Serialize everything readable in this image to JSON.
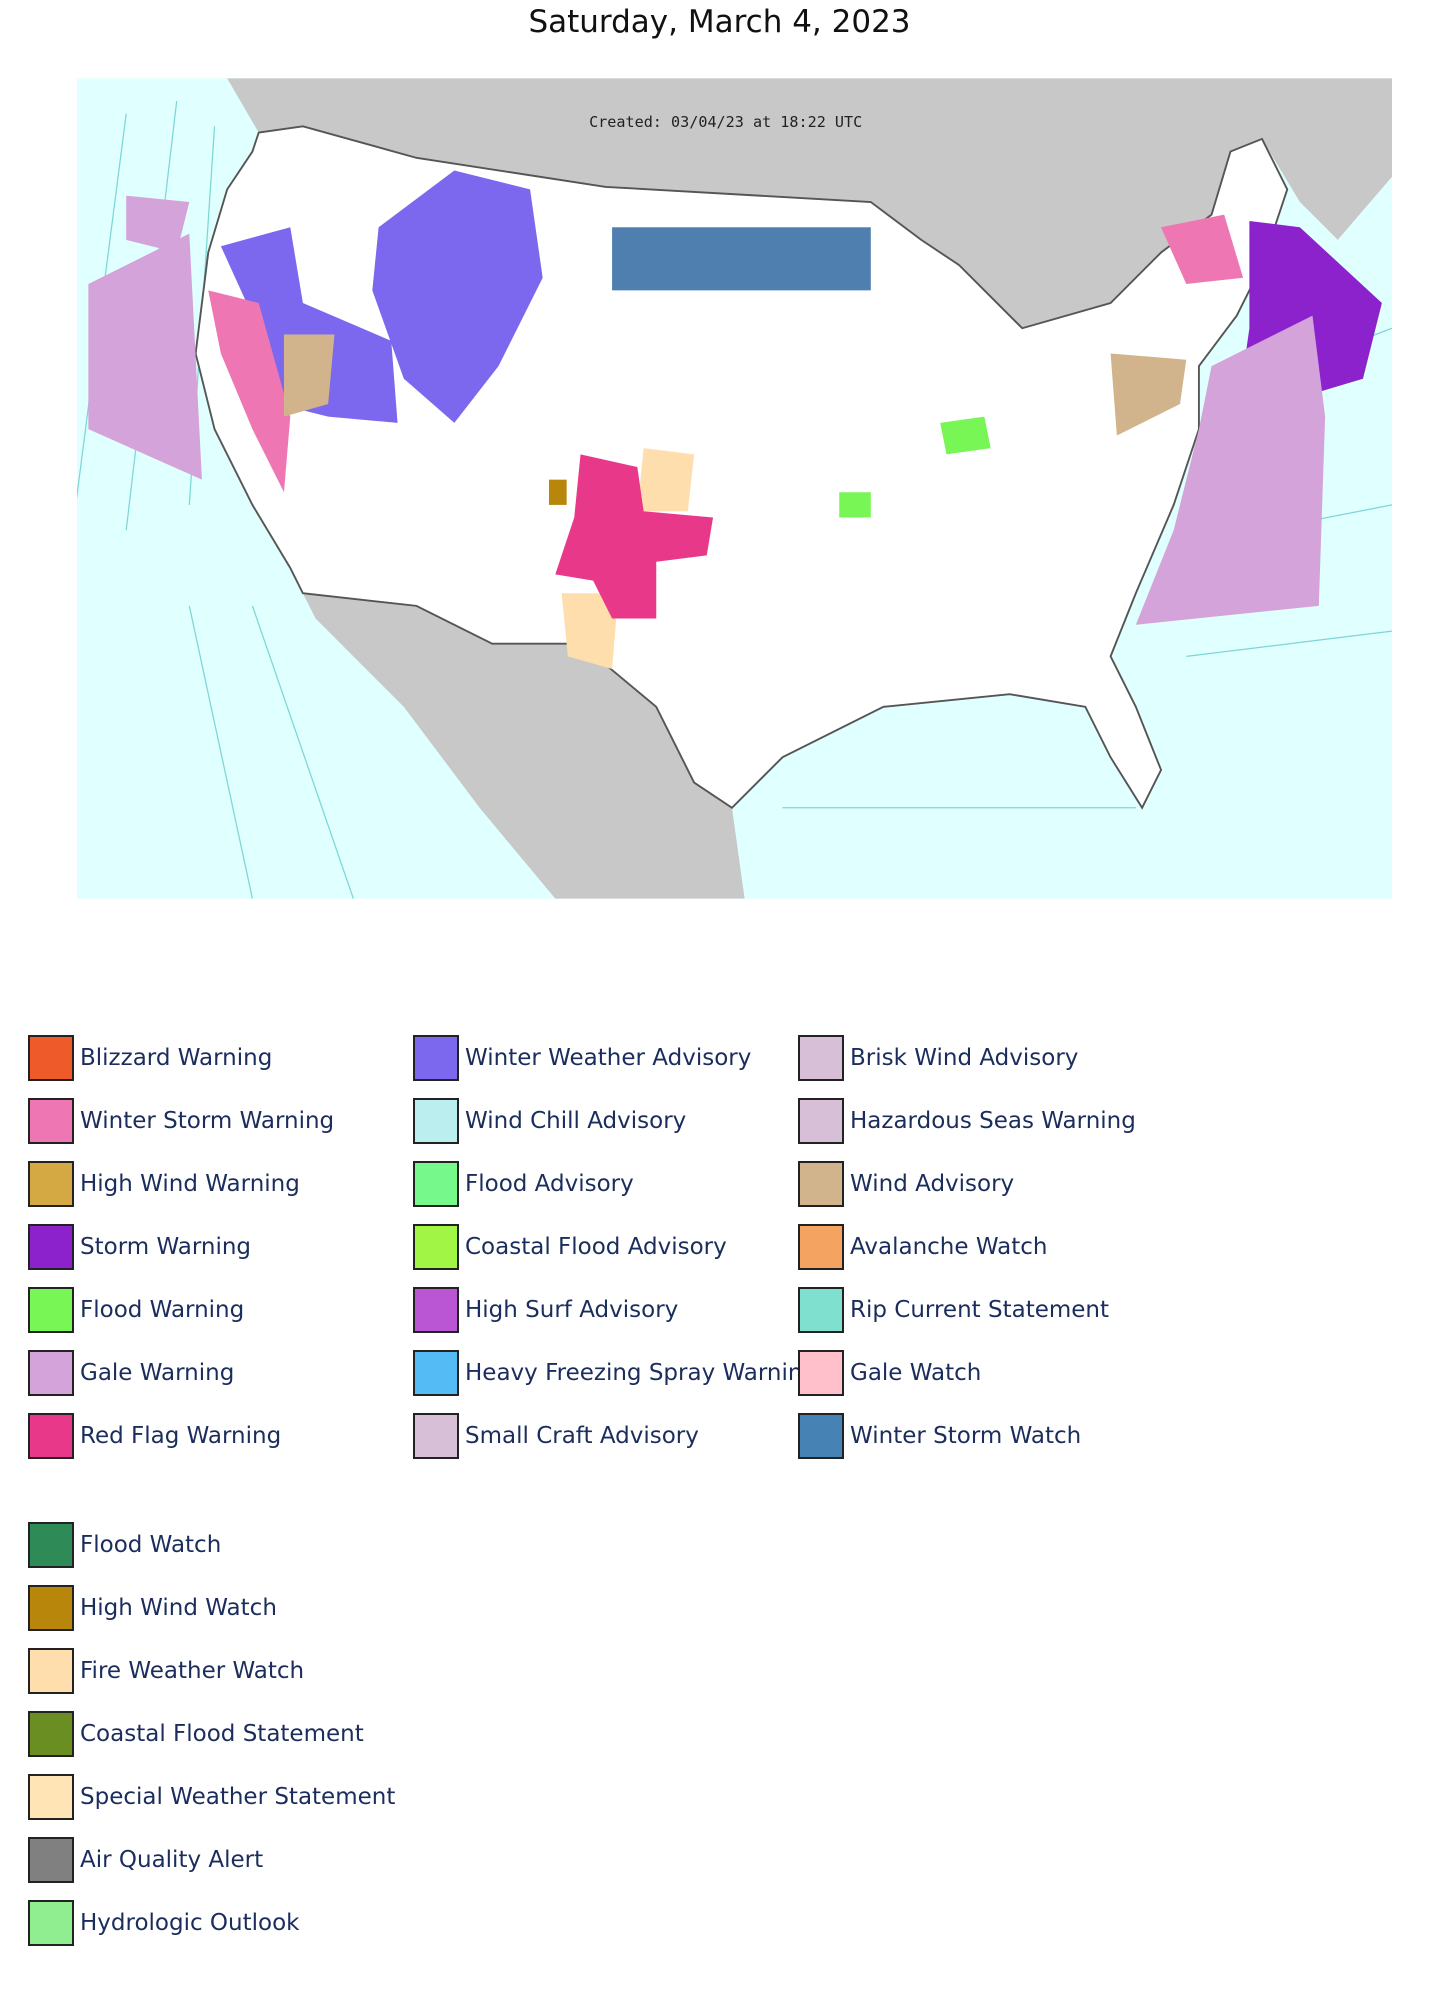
{
  "title": "Saturday, March 4, 2023",
  "map": {
    "created": "Created: 03/04/23 at 18:22 UTC"
  },
  "legend": {
    "columns": [
      [
        {
          "label": "Blizzard Warning",
          "color": "#ee5a2a"
        },
        {
          "label": "Winter Storm Warning",
          "color": "#ee77b3"
        },
        {
          "label": "High Wind Warning",
          "color": "#d4a843"
        },
        {
          "label": "Storm Warning",
          "color": "#8b22cc"
        },
        {
          "label": "Flood Warning",
          "color": "#77f655"
        },
        {
          "label": "Gale Warning",
          "color": "#d4a3d9"
        },
        {
          "label": "Red Flag Warning",
          "color": "#e8388a"
        }
      ],
      [
        {
          "label": "Winter Weather Advisory",
          "color": "#7b68ee"
        },
        {
          "label": "Wind Chill Advisory",
          "color": "#bbeeee"
        },
        {
          "label": "Flood Advisory",
          "color": "#77f88a"
        },
        {
          "label": "Coastal Flood Advisory",
          "color": "#a0f545"
        },
        {
          "label": "High Surf Advisory",
          "color": "#ba55d3"
        },
        {
          "label": "Heavy Freezing Spray Warning",
          "color": "#55bbf5"
        },
        {
          "label": "Small Craft Advisory",
          "color": "#d8bfd8"
        }
      ],
      [
        {
          "label": "Brisk Wind Advisory",
          "color": "#d8bfd8"
        },
        {
          "label": "Hazardous Seas Warning",
          "color": "#d8bfd8"
        },
        {
          "label": "Wind Advisory",
          "color": "#d2b48c"
        },
        {
          "label": "Avalanche Watch",
          "color": "#f4a460"
        },
        {
          "label": "Rip Current Statement",
          "color": "#7fe0d0"
        },
        {
          "label": "Gale Watch",
          "color": "#ffc0cb"
        },
        {
          "label": "Winter Storm Watch",
          "color": "#4682b4"
        }
      ]
    ],
    "extra": [
      {
        "label": "Flood Watch",
        "color": "#2e8b57"
      },
      {
        "label": "High Wind Watch",
        "color": "#b8860b"
      },
      {
        "label": "Fire Weather Watch",
        "color": "#ffdead"
      },
      {
        "label": "Coastal Flood Statement",
        "color": "#6b8e23"
      },
      {
        "label": "Special Weather Statement",
        "color": "#ffe4b5"
      },
      {
        "label": "Air Quality Alert",
        "color": "#808080"
      },
      {
        "label": "Hydrologic Outlook",
        "color": "#90ee90"
      }
    ]
  }
}
